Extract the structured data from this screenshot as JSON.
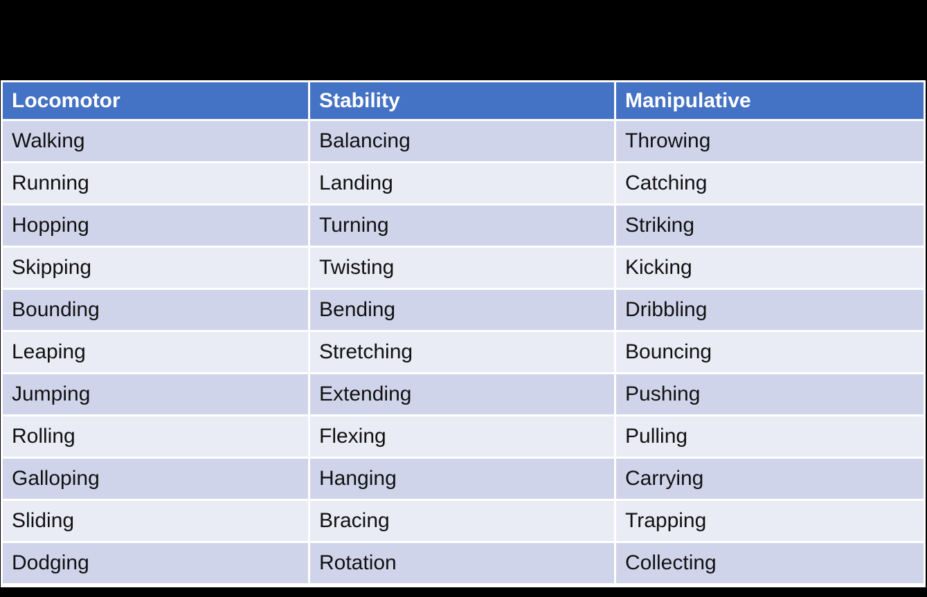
{
  "slide": {
    "background": "#000000"
  },
  "table": {
    "columns": [
      "Locomotor",
      "Stability",
      "Manipulative"
    ],
    "rows": [
      [
        "Walking",
        "Balancing",
        "Throwing"
      ],
      [
        "Running",
        "Landing",
        "Catching"
      ],
      [
        "Hopping",
        "Turning",
        "Striking"
      ],
      [
        "Skipping",
        "Twisting",
        "Kicking"
      ],
      [
        "Bounding",
        "Bending",
        "Dribbling"
      ],
      [
        "Leaping",
        "Stretching",
        "Bouncing"
      ],
      [
        "Jumping",
        "Extending",
        "Pushing"
      ],
      [
        "Rolling",
        "Flexing",
        "Pulling"
      ],
      [
        "Galloping",
        "Hanging",
        "Carrying"
      ],
      [
        "Sliding",
        "Bracing",
        "Trapping"
      ],
      [
        "Dodging",
        "Rotation",
        "Collecting"
      ]
    ],
    "colors": {
      "header_bg": "#4472C4",
      "header_text": "#FFFFFF",
      "row_odd_bg": "#CFD4EA",
      "row_even_bg": "#E9EBF5",
      "grid_line": "#FFFFFF",
      "canvas_bg": "#000000",
      "body_text": "#111111"
    }
  }
}
